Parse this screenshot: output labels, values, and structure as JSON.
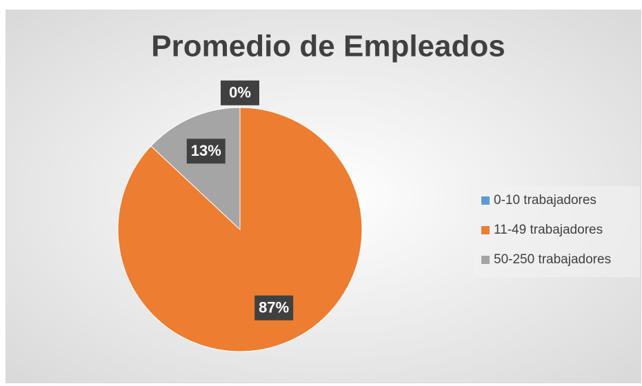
{
  "chart_data": {
    "type": "pie",
    "title": "Promedio de Empleados",
    "categories": [
      "0-10 trabajadores",
      "11-49 trabajadores",
      "50-250 trabajadores"
    ],
    "values": [
      0,
      87,
      13
    ],
    "value_labels": [
      "0%",
      "87%",
      "13%"
    ],
    "colors": [
      "#5b9bd5",
      "#ed7d31",
      "#a5a5a5"
    ],
    "legend": "right"
  }
}
